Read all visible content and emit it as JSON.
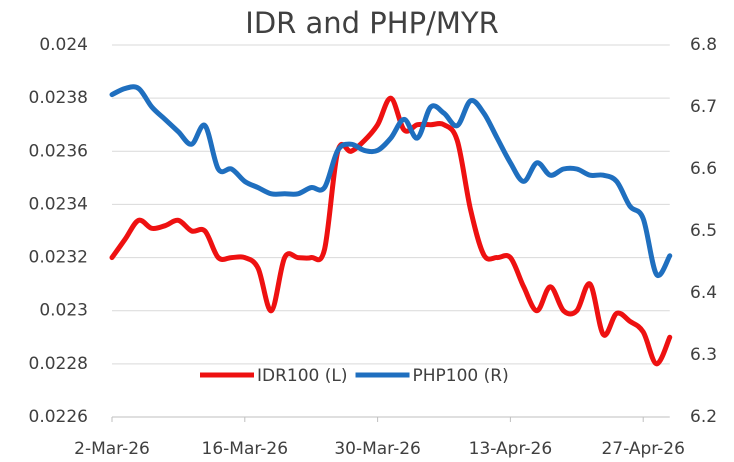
{
  "chart_data": {
    "type": "line",
    "title": "IDR and PHP/MYR",
    "categories": [
      "2-Mar-26",
      null,
      null,
      null,
      null,
      null,
      null,
      null,
      null,
      null,
      "16-Mar-26",
      null,
      null,
      null,
      null,
      null,
      null,
      null,
      null,
      null,
      "30-Mar-26",
      null,
      null,
      null,
      null,
      null,
      null,
      null,
      null,
      null,
      "13-Apr-26",
      null,
      null,
      null,
      null,
      null,
      null,
      null,
      null,
      null,
      "27-Apr-26",
      null,
      null
    ],
    "series": [
      {
        "name": "IDR100 (L)",
        "color": "#ee1111",
        "axis": "y",
        "values": [
          0.0232,
          0.02327,
          0.02334,
          0.02331,
          0.02332,
          0.02334,
          0.0233,
          0.0233,
          0.0232,
          0.0232,
          0.0232,
          0.02316,
          0.023,
          0.0232,
          0.0232,
          0.0232,
          0.02323,
          0.0236,
          0.0236,
          0.02364,
          0.0237,
          0.0238,
          0.02368,
          0.0237,
          0.0237,
          0.0237,
          0.02364,
          0.02338,
          0.02321,
          0.0232,
          0.0232,
          0.02309,
          0.023,
          0.02309,
          0.023,
          0.023,
          0.0231,
          0.02291,
          0.02299,
          0.02296,
          0.02292,
          0.0228,
          0.0229
        ]
      },
      {
        "name": "PHP100 (R)",
        "color": "#1f6fbf",
        "axis": "y2",
        "values": [
          6.72,
          6.73,
          6.73,
          6.7,
          6.68,
          6.66,
          6.64,
          6.67,
          6.6,
          6.6,
          6.58,
          6.57,
          6.56,
          6.56,
          6.56,
          6.57,
          6.57,
          6.63,
          6.64,
          6.63,
          6.63,
          6.65,
          6.68,
          6.65,
          6.7,
          6.69,
          6.67,
          6.71,
          6.69,
          6.65,
          6.61,
          6.58,
          6.61,
          6.59,
          6.6,
          6.6,
          6.59,
          6.59,
          6.58,
          6.54,
          6.52,
          6.43,
          6.46
        ]
      }
    ],
    "ylim": [
      0.0226,
      0.024
    ],
    "yticks": [
      0.0226,
      0.0228,
      0.023,
      0.0232,
      0.0234,
      0.0236,
      0.0238,
      0.024
    ],
    "y2lim": [
      6.2,
      6.8
    ],
    "y2ticks": [
      6.2,
      6.3,
      6.4,
      6.5,
      6.6,
      6.7,
      6.8
    ],
    "grid": true,
    "legend": "bottom"
  }
}
